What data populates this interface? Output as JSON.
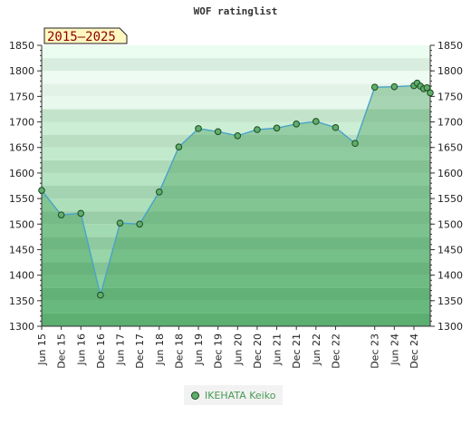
{
  "chart_data": {
    "type": "area",
    "title": "WOF ratinglist",
    "period_label": "2015–2025",
    "ylim": [
      1300,
      1850
    ],
    "yticks": [
      1300,
      1350,
      1400,
      1450,
      1500,
      1550,
      1600,
      1650,
      1700,
      1750,
      1800,
      1850
    ],
    "x_tick_labels": [
      "Jun 15",
      "Dec 15",
      "Jun 16",
      "Dec 16",
      "Jun 17",
      "Dec 17",
      "Jun 18",
      "Dec 18",
      "Jun 19",
      "Dec 19",
      "Jun 20",
      "Dec 20",
      "Jun 21",
      "Dec 21",
      "Jun 22",
      "Dec 22",
      "Dec 23",
      "Jun 24",
      "Dec 24"
    ],
    "series": [
      {
        "name": "IKEHATA Keiko",
        "points": [
          {
            "x": "2015-06",
            "y": 1566
          },
          {
            "x": "2015-12",
            "y": 1518
          },
          {
            "x": "2016-06",
            "y": 1521
          },
          {
            "x": "2016-12",
            "y": 1361
          },
          {
            "x": "2017-06",
            "y": 1502
          },
          {
            "x": "2017-12",
            "y": 1500
          },
          {
            "x": "2018-06",
            "y": 1563
          },
          {
            "x": "2018-12",
            "y": 1651
          },
          {
            "x": "2019-06",
            "y": 1687
          },
          {
            "x": "2019-12",
            "y": 1681
          },
          {
            "x": "2020-06",
            "y": 1673
          },
          {
            "x": "2020-12",
            "y": 1685
          },
          {
            "x": "2021-06",
            "y": 1688
          },
          {
            "x": "2021-12",
            "y": 1696
          },
          {
            "x": "2022-06",
            "y": 1701
          },
          {
            "x": "2022-12",
            "y": 1689
          },
          {
            "x": "2023-06",
            "y": 1658
          },
          {
            "x": "2023-12",
            "y": 1768
          },
          {
            "x": "2024-06",
            "y": 1769
          },
          {
            "x": "2024-12",
            "y": 1771
          },
          {
            "x": "2025-01",
            "y": 1776
          },
          {
            "x": "2025-02",
            "y": 1770
          },
          {
            "x": "2025-03",
            "y": 1765
          },
          {
            "x": "2025-04",
            "y": 1767
          },
          {
            "x": "2025-05",
            "y": 1757
          }
        ]
      }
    ],
    "colors": {
      "line": "#4aa3c8",
      "marker": "#5fae6a",
      "marker_edge": "#1c4a22",
      "legend_text": "#4a9a55"
    }
  }
}
